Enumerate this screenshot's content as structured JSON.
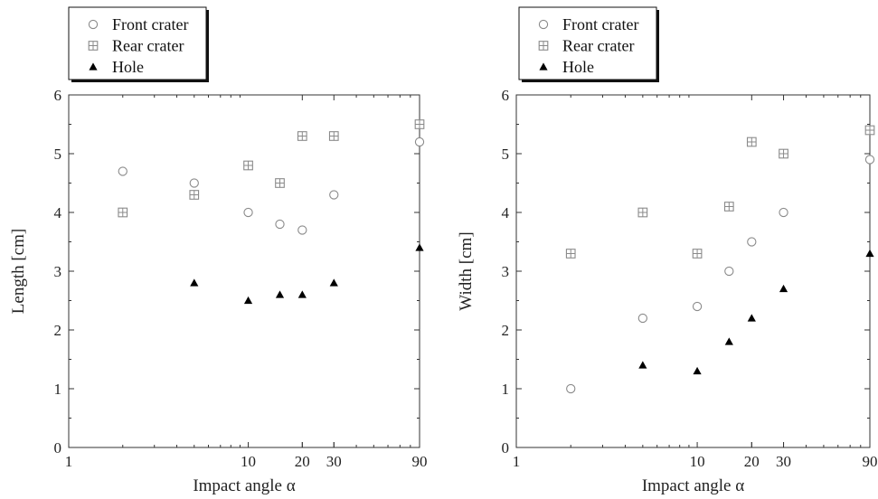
{
  "chart_data": [
    {
      "type": "scatter",
      "xlabel": "Impact angle α",
      "ylabel": "Length [cm]",
      "xscale": "log",
      "xlim": [
        1,
        90
      ],
      "ylim": [
        0,
        6
      ],
      "xticks": [
        1,
        10,
        20,
        30,
        90
      ],
      "yticks": [
        0,
        1,
        2,
        3,
        4,
        5,
        6
      ],
      "legend_position": "top-left outside",
      "grid": false,
      "series": [
        {
          "name": "Front crater",
          "marker": "open-circle",
          "color": "#8a8a8a",
          "x": [
            2,
            5,
            10,
            15,
            20,
            30,
            90
          ],
          "y": [
            4.7,
            4.5,
            4.0,
            3.8,
            3.7,
            4.3,
            5.2
          ]
        },
        {
          "name": "Rear crater",
          "marker": "crossed-square",
          "color": "#8a8a8a",
          "x": [
            2,
            5,
            10,
            15,
            20,
            30,
            90
          ],
          "y": [
            4.0,
            4.3,
            4.8,
            4.5,
            5.3,
            5.3,
            5.5
          ]
        },
        {
          "name": "Hole",
          "marker": "filled-triangle",
          "color": "#000000",
          "x": [
            5,
            10,
            15,
            20,
            30,
            90
          ],
          "y": [
            2.8,
            2.5,
            2.6,
            2.6,
            2.8,
            3.4
          ]
        }
      ]
    },
    {
      "type": "scatter",
      "xlabel": "Impact angle α",
      "ylabel": "Width [cm]",
      "xscale": "log",
      "xlim": [
        1,
        90
      ],
      "ylim": [
        0,
        6
      ],
      "xticks": [
        1,
        10,
        20,
        30,
        90
      ],
      "yticks": [
        0,
        1,
        2,
        3,
        4,
        5,
        6
      ],
      "legend_position": "top-left outside",
      "grid": false,
      "series": [
        {
          "name": "Front crater",
          "marker": "open-circle",
          "color": "#8a8a8a",
          "x": [
            2,
            5,
            10,
            15,
            20,
            30,
            90
          ],
          "y": [
            1.0,
            2.2,
            2.4,
            3.0,
            3.5,
            4.0,
            4.9
          ]
        },
        {
          "name": "Rear crater",
          "marker": "crossed-square",
          "color": "#8a8a8a",
          "x": [
            2,
            5,
            10,
            15,
            20,
            30,
            90
          ],
          "y": [
            3.3,
            4.0,
            3.3,
            4.1,
            5.2,
            5.0,
            5.4
          ]
        },
        {
          "name": "Hole",
          "marker": "filled-triangle",
          "color": "#000000",
          "x": [
            5,
            10,
            15,
            20,
            30,
            90
          ],
          "y": [
            1.4,
            1.3,
            1.8,
            2.2,
            2.7,
            3.3
          ]
        }
      ]
    }
  ]
}
